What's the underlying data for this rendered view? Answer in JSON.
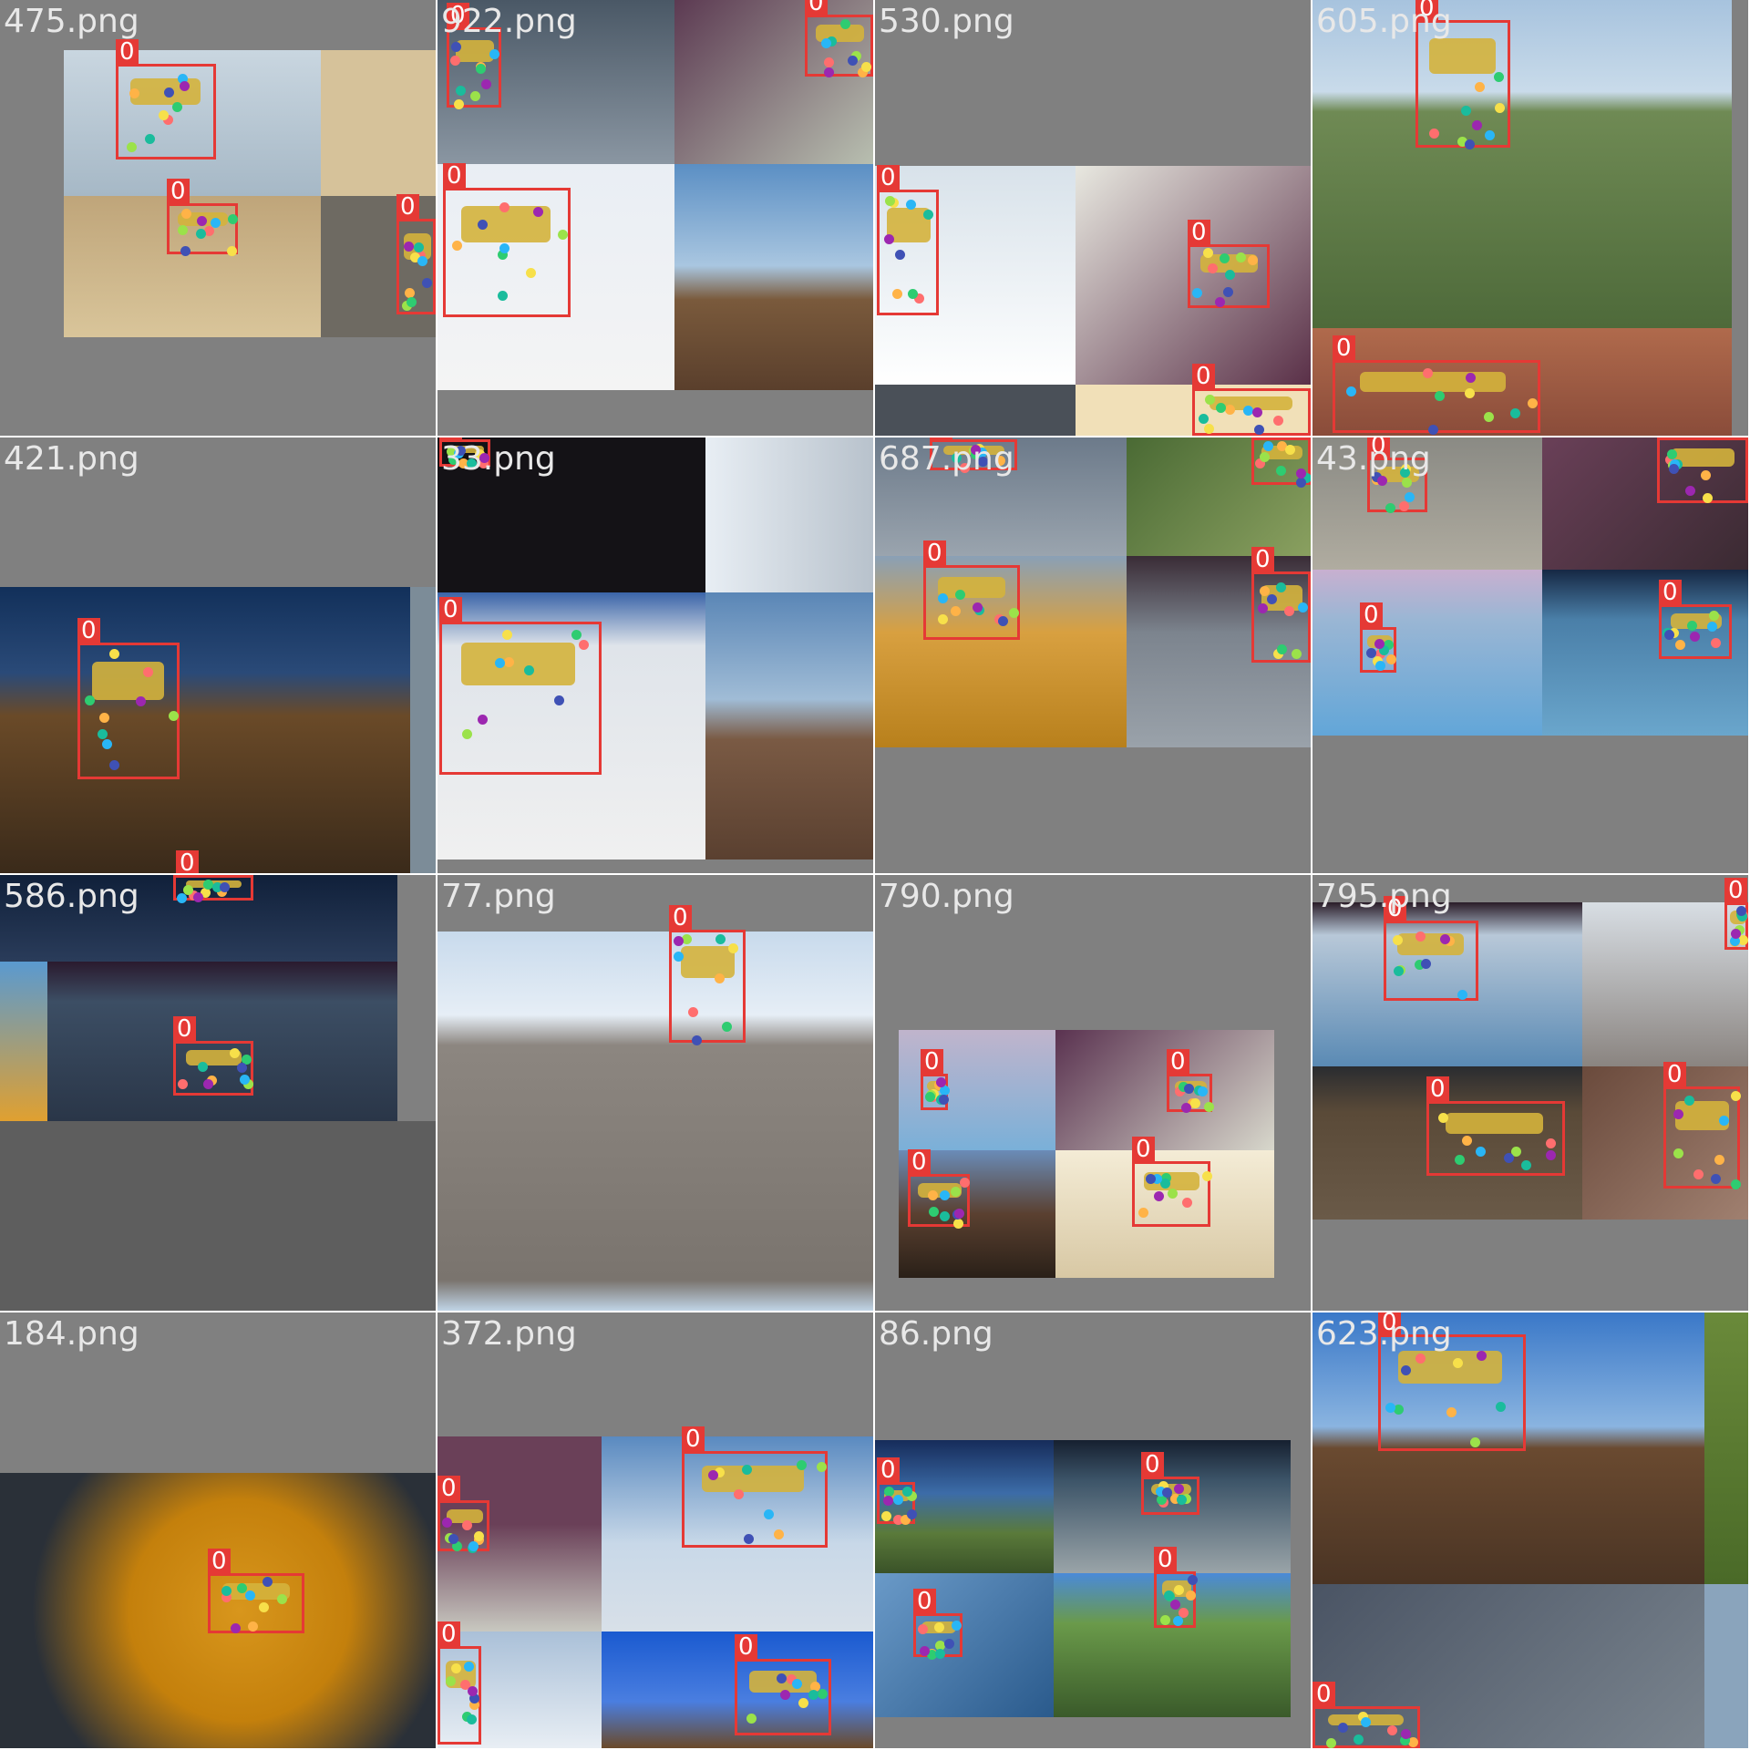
{
  "mosaic": {
    "tiles": [
      {
        "label": "475.png",
        "class_label": "0"
      },
      {
        "label": "922.png",
        "class_label": "0"
      },
      {
        "label": "530.png",
        "class_label": "0"
      },
      {
        "label": "605.png",
        "class_label": "0"
      },
      {
        "label": "421.png",
        "class_label": "0"
      },
      {
        "label": "33.png",
        "class_label": "0"
      },
      {
        "label": "687.png",
        "class_label": "0"
      },
      {
        "label": "43.png",
        "class_label": "0"
      },
      {
        "label": "586.png",
        "class_label": "0"
      },
      {
        "label": "77.png",
        "class_label": "0"
      },
      {
        "label": "790.png",
        "class_label": "0"
      },
      {
        "label": "795.png",
        "class_label": "0"
      },
      {
        "label": "184.png",
        "class_label": "0"
      },
      {
        "label": "372.png",
        "class_label": "0"
      },
      {
        "label": "86.png",
        "class_label": "0"
      },
      {
        "label": "623.png",
        "class_label": "0"
      }
    ]
  },
  "colors": {
    "box": "#e53935",
    "background": "#808080",
    "keypoints": [
      "#ff6e6e",
      "#ffb347",
      "#f7e04a",
      "#9be24a",
      "#2ecc71",
      "#1abc9c",
      "#29b6f6",
      "#3f51b5",
      "#9c27b0",
      "#ff80ab"
    ]
  }
}
